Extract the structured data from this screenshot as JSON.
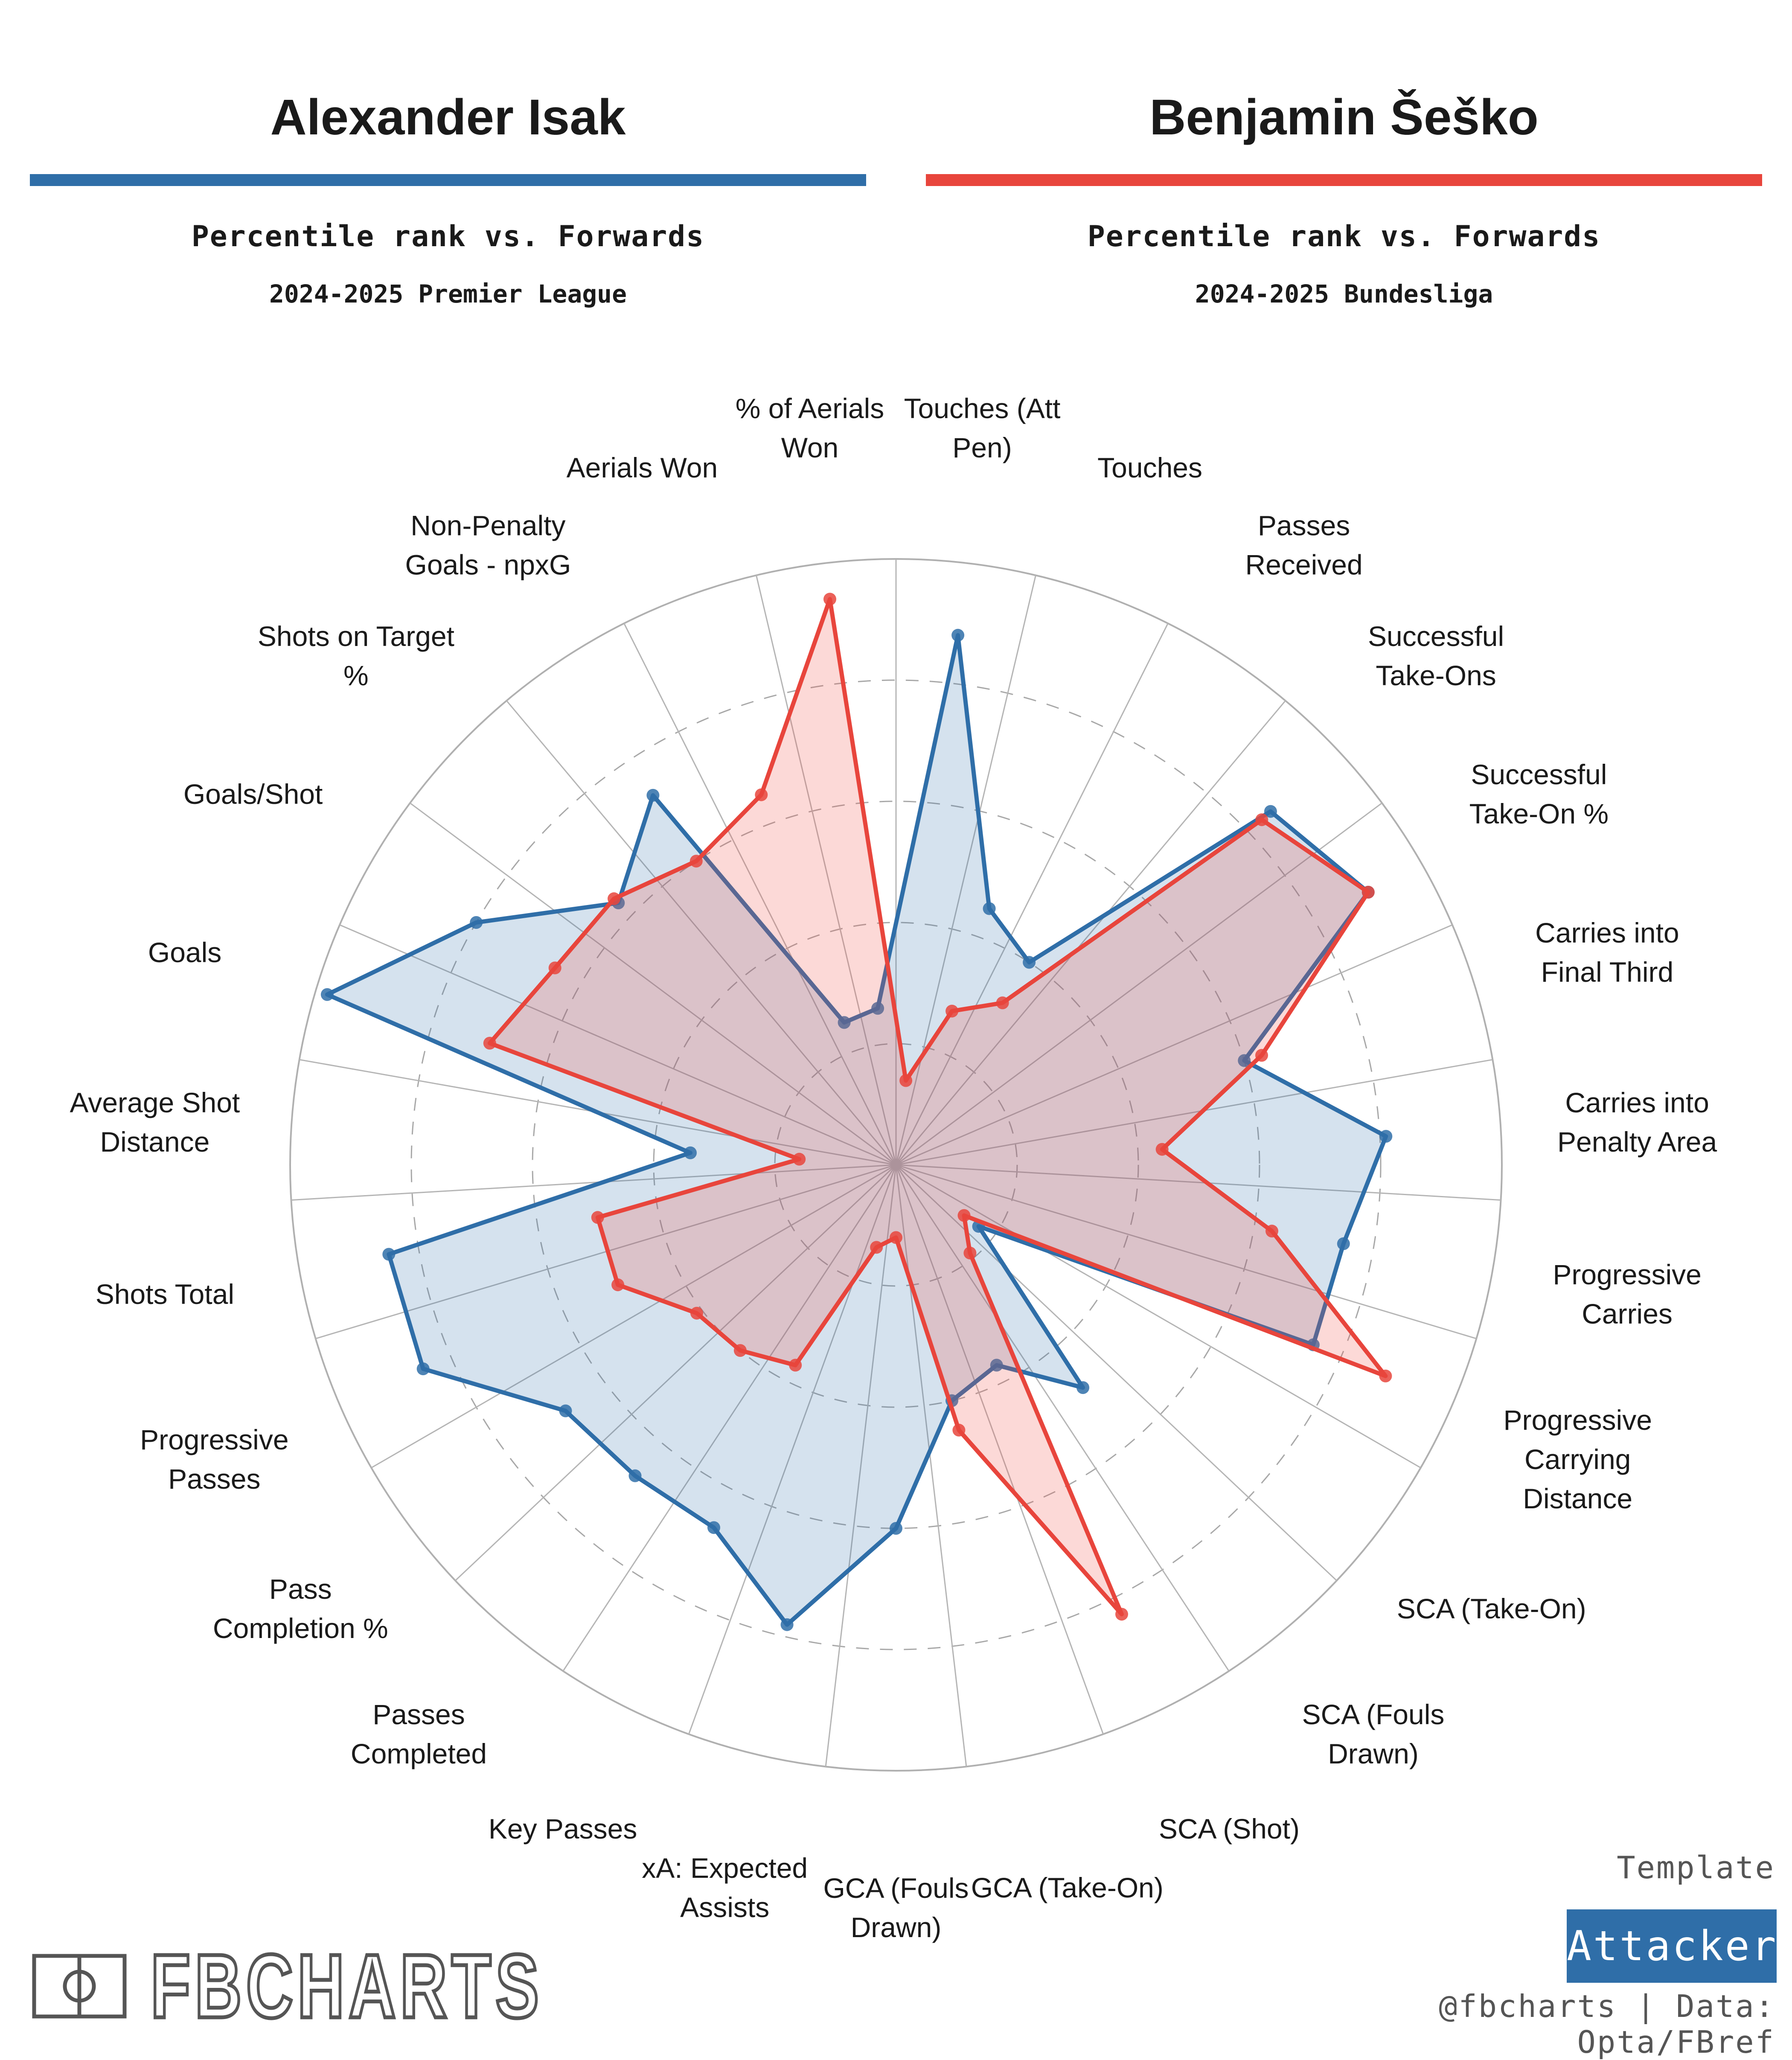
{
  "players": [
    {
      "name": "Alexander Isak",
      "subtitle": "Percentile rank vs. Forwards",
      "league": "2024-2025 Premier League",
      "color": "#2f6ea8"
    },
    {
      "name": "Benjamin Šeško",
      "subtitle": "Percentile rank vs. Forwards",
      "league": "2024-2025 Bundesliga",
      "color": "#e8453c"
    }
  ],
  "chart_data": {
    "type": "radar",
    "title": "",
    "range": [
      0,
      100
    ],
    "gridlines": [
      20,
      40,
      60,
      80
    ],
    "categories": [
      "Touches (Att Pen)",
      "Touches",
      "Passes Received",
      "Successful Take-Ons",
      "Successful Take-On %",
      "Carries into Final Third",
      "Carries into Penalty Area",
      "Progressive Carries",
      "Progressive Carrying Distance",
      "SCA (Take-On)",
      "SCA (Fouls Drawn)",
      "SCA (Shot)",
      "GCA (Take-On)",
      "GCA (Fouls Drawn)",
      "xA: Expected Assists",
      "Key Passes",
      "Passes Completed",
      "Pass Completion %",
      "Progressive Passes",
      "Shots Total",
      "Average Shot Distance",
      "Goals",
      "Goals/Shot",
      "Shots on Target %",
      "Non-Penalty Goals - npxG",
      "Aerials Won",
      "% of Aerials Won"
    ],
    "category_lines": [
      [
        "Touches (Att",
        "Pen)"
      ],
      [
        "Touches"
      ],
      [
        "Passes",
        "Received"
      ],
      [
        "Successful",
        "Take-Ons"
      ],
      [
        "Successful",
        "Take-On %"
      ],
      [
        "Carries into",
        "Final Third"
      ],
      [
        "Carries into",
        "Penalty Area"
      ],
      [
        "Progressive",
        "Carries"
      ],
      [
        "Progressive",
        "Carrying",
        "Distance"
      ],
      [
        "SCA (Take-On)"
      ],
      [
        "SCA (Fouls",
        "Drawn)"
      ],
      [
        "SCA (Shot)"
      ],
      [
        "GCA (Take-On)"
      ],
      [
        "GCA (Fouls",
        "Drawn)"
      ],
      [
        "xA: Expected",
        "Assists"
      ],
      [
        "Key Passes"
      ],
      [
        "Passes",
        "Completed"
      ],
      [
        "Pass",
        "Completion %"
      ],
      [
        "Progressive",
        "Passes"
      ],
      [
        "Shots Total"
      ],
      [
        "Average Shot",
        "Distance"
      ],
      [
        "Goals"
      ],
      [
        "Goals/Shot"
      ],
      [
        "Shots on Target",
        "%"
      ],
      [
        "Non-Penalty",
        "Goals - npxG"
      ],
      [
        "Aerials Won"
      ],
      [
        "% of Aerials",
        "Won"
      ]
    ],
    "series": [
      {
        "name": "Alexander Isak",
        "values": [
          88,
          45,
          40,
          85,
          90,
          60,
          81,
          75,
          75,
          17,
          48,
          37,
          40,
          60,
          78,
          67,
          67,
          68,
          85,
          85,
          34,
          98,
          80,
          63,
          73,
          25,
          26
        ]
      },
      {
        "name": "Benjamin Šeško",
        "values": [
          14,
          27,
          32,
          83,
          90,
          63,
          44,
          63,
          88,
          14,
          19,
          83,
          45,
          12,
          14,
          37,
          40,
          41,
          50,
          50,
          16,
          70,
          65,
          64,
          60,
          65,
          94
        ]
      }
    ],
    "legend": "top"
  },
  "branding": {
    "logo": "FBCHARTS",
    "template_label": "Template",
    "template_value": "Attacker",
    "credit": "@fbcharts | Data: Opta/FBref"
  },
  "icons": {
    "logo": "football-pitch-icon"
  }
}
